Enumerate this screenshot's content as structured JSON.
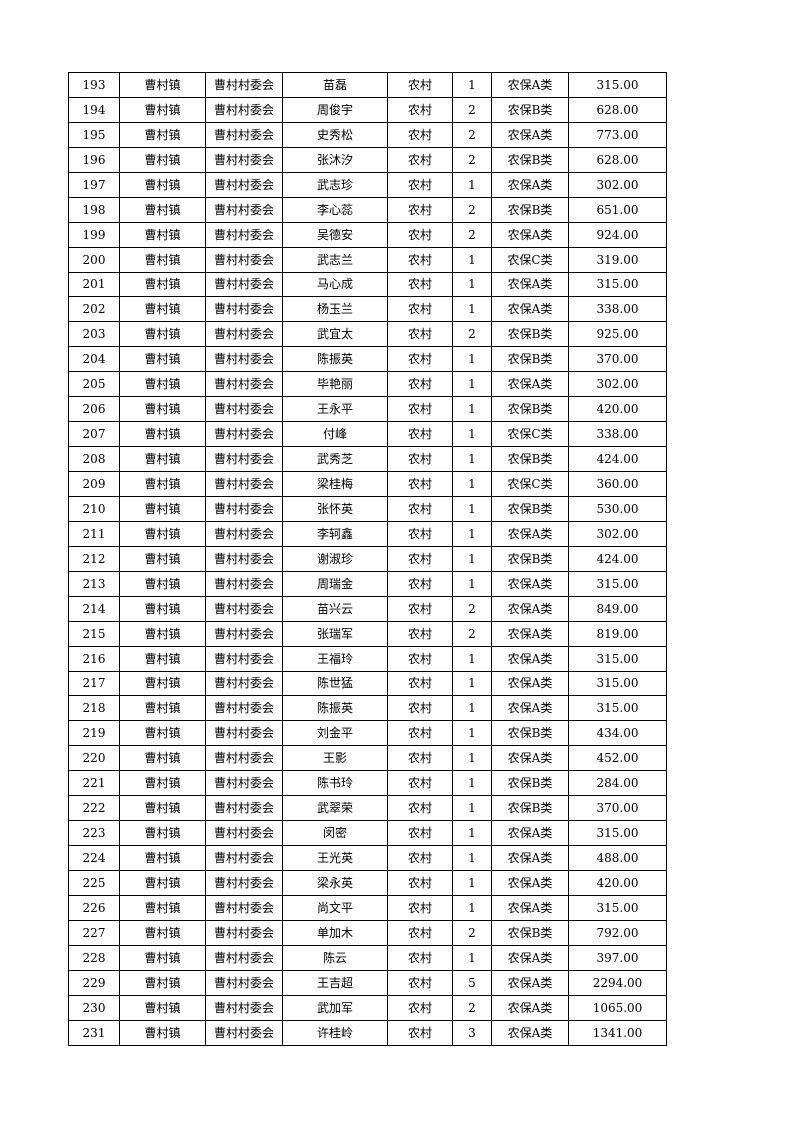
{
  "table": {
    "rows": [
      [
        "193",
        "曹村镇",
        "曹村村委会",
        "苗磊",
        "农村",
        "1",
        "农保A类",
        "315.00"
      ],
      [
        "194",
        "曹村镇",
        "曹村村委会",
        "周俊宇",
        "农村",
        "2",
        "农保B类",
        "628.00"
      ],
      [
        "195",
        "曹村镇",
        "曹村村委会",
        "史秀松",
        "农村",
        "2",
        "农保A类",
        "773.00"
      ],
      [
        "196",
        "曹村镇",
        "曹村村委会",
        "张沐汐",
        "农村",
        "2",
        "农保B类",
        "628.00"
      ],
      [
        "197",
        "曹村镇",
        "曹村村委会",
        "武志珍",
        "农村",
        "1",
        "农保A类",
        "302.00"
      ],
      [
        "198",
        "曹村镇",
        "曹村村委会",
        "李心蕊",
        "农村",
        "2",
        "农保B类",
        "651.00"
      ],
      [
        "199",
        "曹村镇",
        "曹村村委会",
        "吴德安",
        "农村",
        "2",
        "农保A类",
        "924.00"
      ],
      [
        "200",
        "曹村镇",
        "曹村村委会",
        "武志兰",
        "农村",
        "1",
        "农保C类",
        "319.00"
      ],
      [
        "201",
        "曹村镇",
        "曹村村委会",
        "马心成",
        "农村",
        "1",
        "农保A类",
        "315.00"
      ],
      [
        "202",
        "曹村镇",
        "曹村村委会",
        "杨玉兰",
        "农村",
        "1",
        "农保A类",
        "338.00"
      ],
      [
        "203",
        "曹村镇",
        "曹村村委会",
        "武宜太",
        "农村",
        "2",
        "农保B类",
        "925.00"
      ],
      [
        "204",
        "曹村镇",
        "曹村村委会",
        "陈振英",
        "农村",
        "1",
        "农保B类",
        "370.00"
      ],
      [
        "205",
        "曹村镇",
        "曹村村委会",
        "毕艳丽",
        "农村",
        "1",
        "农保A类",
        "302.00"
      ],
      [
        "206",
        "曹村镇",
        "曹村村委会",
        "王永平",
        "农村",
        "1",
        "农保B类",
        "420.00"
      ],
      [
        "207",
        "曹村镇",
        "曹村村委会",
        "付峰",
        "农村",
        "1",
        "农保C类",
        "338.00"
      ],
      [
        "208",
        "曹村镇",
        "曹村村委会",
        "武秀芝",
        "农村",
        "1",
        "农保B类",
        "424.00"
      ],
      [
        "209",
        "曹村镇",
        "曹村村委会",
        "梁桂梅",
        "农村",
        "1",
        "农保C类",
        "360.00"
      ],
      [
        "210",
        "曹村镇",
        "曹村村委会",
        "张怀英",
        "农村",
        "1",
        "农保B类",
        "530.00"
      ],
      [
        "211",
        "曹村镇",
        "曹村村委会",
        "李轲鑫",
        "农村",
        "1",
        "农保A类",
        "302.00"
      ],
      [
        "212",
        "曹村镇",
        "曹村村委会",
        "谢淑珍",
        "农村",
        "1",
        "农保B类",
        "424.00"
      ],
      [
        "213",
        "曹村镇",
        "曹村村委会",
        "周瑞金",
        "农村",
        "1",
        "农保A类",
        "315.00"
      ],
      [
        "214",
        "曹村镇",
        "曹村村委会",
        "苗兴云",
        "农村",
        "2",
        "农保A类",
        "849.00"
      ],
      [
        "215",
        "曹村镇",
        "曹村村委会",
        "张瑞军",
        "农村",
        "2",
        "农保A类",
        "819.00"
      ],
      [
        "216",
        "曹村镇",
        "曹村村委会",
        "王福玲",
        "农村",
        "1",
        "农保A类",
        "315.00"
      ],
      [
        "217",
        "曹村镇",
        "曹村村委会",
        "陈世猛",
        "农村",
        "1",
        "农保A类",
        "315.00"
      ],
      [
        "218",
        "曹村镇",
        "曹村村委会",
        "陈振英",
        "农村",
        "1",
        "农保A类",
        "315.00"
      ],
      [
        "219",
        "曹村镇",
        "曹村村委会",
        "刘金平",
        "农村",
        "1",
        "农保B类",
        "434.00"
      ],
      [
        "220",
        "曹村镇",
        "曹村村委会",
        "王影",
        "农村",
        "1",
        "农保A类",
        "452.00"
      ],
      [
        "221",
        "曹村镇",
        "曹村村委会",
        "陈书玲",
        "农村",
        "1",
        "农保B类",
        "284.00"
      ],
      [
        "222",
        "曹村镇",
        "曹村村委会",
        "武翠荣",
        "农村",
        "1",
        "农保B类",
        "370.00"
      ],
      [
        "223",
        "曹村镇",
        "曹村村委会",
        "闵密",
        "农村",
        "1",
        "农保A类",
        "315.00"
      ],
      [
        "224",
        "曹村镇",
        "曹村村委会",
        "王光英",
        "农村",
        "1",
        "农保A类",
        "488.00"
      ],
      [
        "225",
        "曹村镇",
        "曹村村委会",
        "梁永英",
        "农村",
        "1",
        "农保A类",
        "420.00"
      ],
      [
        "226",
        "曹村镇",
        "曹村村委会",
        "尚文平",
        "农村",
        "1",
        "农保A类",
        "315.00"
      ],
      [
        "227",
        "曹村镇",
        "曹村村委会",
        "单加木",
        "农村",
        "2",
        "农保B类",
        "792.00"
      ],
      [
        "228",
        "曹村镇",
        "曹村村委会",
        "陈云",
        "农村",
        "1",
        "农保A类",
        "397.00"
      ],
      [
        "229",
        "曹村镇",
        "曹村村委会",
        "王吉超",
        "农村",
        "5",
        "农保A类",
        "2294.00"
      ],
      [
        "230",
        "曹村镇",
        "曹村村委会",
        "武加军",
        "农村",
        "2",
        "农保A类",
        "1065.00"
      ],
      [
        "231",
        "曹村镇",
        "曹村村委会",
        "许桂岭",
        "农村",
        "3",
        "农保A类",
        "1341.00"
      ]
    ]
  }
}
